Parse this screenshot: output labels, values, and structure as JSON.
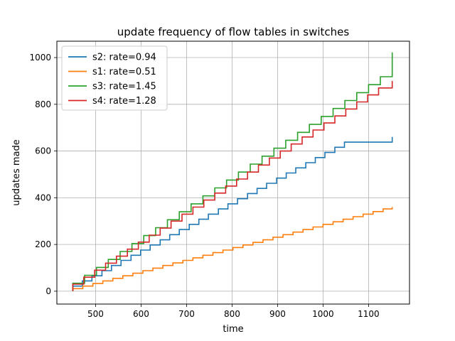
{
  "chart_data": {
    "type": "line",
    "step": true,
    "title": "update frequency of flow tables in switches",
    "xlabel": "time",
    "ylabel": "updates made",
    "xlim": [
      415,
      1190
    ],
    "ylim": [
      -55,
      1070
    ],
    "xticks": [
      500,
      600,
      700,
      800,
      900,
      1000,
      1100
    ],
    "yticks": [
      0,
      200,
      400,
      600,
      800,
      1000
    ],
    "grid": true,
    "legend_position": "top-left",
    "series": [
      {
        "name": "s2:  rate=0.94",
        "color": "#1f77b4",
        "x": [
          450,
          450,
          471,
          492,
          514,
          535,
          556,
          578,
          599,
          620,
          642,
          663,
          684,
          706,
          727,
          748,
          770,
          791,
          812,
          834,
          855,
          876,
          898,
          919,
          940,
          962,
          983,
          1004,
          1026,
          1047,
          1068,
          1090,
          1111,
          1132,
          1152,
          1152
        ],
        "y": [
          0,
          22,
          44,
          66,
          88,
          110,
          132,
          154,
          176,
          198,
          220,
          242,
          264,
          286,
          308,
          330,
          352,
          374,
          396,
          418,
          440,
          462,
          484,
          506,
          528,
          550,
          572,
          594,
          616,
          638,
          638,
          638,
          638,
          638,
          638,
          660
        ]
      },
      {
        "name": "s1:  rate=0.51",
        "color": "#ff7f0e",
        "x": [
          450,
          450,
          472,
          494,
          516,
          538,
          560,
          582,
          604,
          626,
          648,
          670,
          692,
          714,
          736,
          758,
          780,
          802,
          824,
          846,
          868,
          890,
          912,
          934,
          956,
          978,
          1000,
          1022,
          1044,
          1066,
          1088,
          1110,
          1132,
          1152,
          1152
        ],
        "y": [
          0,
          11,
          22,
          33,
          44,
          55,
          66,
          77,
          88,
          99,
          110,
          121,
          132,
          143,
          154,
          165,
          176,
          187,
          198,
          209,
          220,
          231,
          242,
          253,
          264,
          275,
          286,
          297,
          308,
          319,
          330,
          341,
          352,
          352,
          360
        ]
      },
      {
        "name": "s3:  rate=1.45",
        "color": "#2ca02c",
        "x": [
          450,
          450,
          476,
          502,
          528,
          554,
          580,
          606,
          632,
          658,
          684,
          710,
          736,
          762,
          788,
          814,
          840,
          866,
          892,
          918,
          944,
          970,
          996,
          1022,
          1048,
          1074,
          1100,
          1126,
          1152,
          1152
        ],
        "y": [
          0,
          34,
          68,
          102,
          136,
          170,
          204,
          238,
          272,
          306,
          340,
          374,
          408,
          442,
          476,
          510,
          544,
          578,
          612,
          646,
          680,
          714,
          748,
          782,
          816,
          850,
          884,
          918,
          952,
          1022
        ]
      },
      {
        "name": "s4:  rate=1.28",
        "color": "#d62728",
        "x": [
          450,
          450,
          474,
          498,
          522,
          546,
          570,
          594,
          618,
          642,
          666,
          690,
          714,
          738,
          762,
          786,
          810,
          834,
          858,
          882,
          906,
          930,
          954,
          978,
          1002,
          1026,
          1050,
          1074,
          1098,
          1122,
          1152,
          1152
        ],
        "y": [
          0,
          30,
          60,
          90,
          120,
          150,
          180,
          210,
          240,
          270,
          300,
          330,
          360,
          390,
          420,
          450,
          480,
          510,
          540,
          570,
          600,
          630,
          660,
          690,
          720,
          750,
          780,
          810,
          840,
          870,
          870,
          900
        ]
      }
    ]
  }
}
